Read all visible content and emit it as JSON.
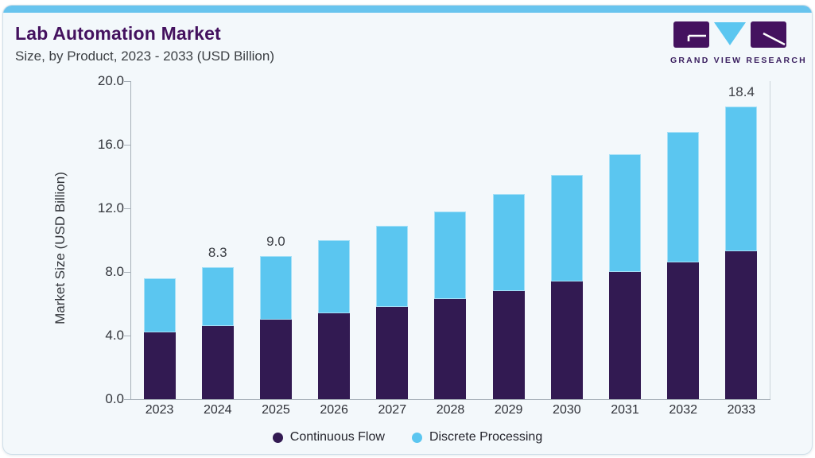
{
  "page": {
    "title": "Lab Automation Market",
    "subtitle": "Size, by Product, 2023 - 2033 (USD Billion)"
  },
  "logo": {
    "name": "grand-view-research",
    "text": "GRAND VIEW RESEARCH"
  },
  "colors": {
    "brand_purple": "#44125f",
    "bar_purple": "#321a52",
    "bar_blue": "#5bc6f0",
    "top_accent": "#68c4ee",
    "card_bg": "#f3f8fb",
    "card_border": "#cfdfe9",
    "axis_line": "#a7b0b8",
    "text_dark": "#33363c"
  },
  "chart_data": {
    "type": "bar",
    "stacked": true,
    "title": "Lab Automation Market Size, by Product, 2023 - 2033 (USD Billion)",
    "categories": [
      "2023",
      "2024",
      "2025",
      "2026",
      "2027",
      "2028",
      "2029",
      "2030",
      "2031",
      "2032",
      "2033"
    ],
    "series": [
      {
        "name": "Continuous Flow",
        "color": "#321a52",
        "values": [
          4.2,
          4.6,
          5.0,
          5.4,
          5.8,
          6.3,
          6.8,
          7.4,
          8.0,
          8.6,
          9.3
        ]
      },
      {
        "name": "Discrete Processing",
        "color": "#5bc6f0",
        "values": [
          3.4,
          3.7,
          4.0,
          4.6,
          5.1,
          5.5,
          6.1,
          6.7,
          7.4,
          8.2,
          9.1
        ]
      }
    ],
    "totals": [
      7.6,
      8.3,
      9.0,
      10.0,
      10.9,
      11.8,
      12.9,
      14.1,
      15.4,
      16.8,
      18.4
    ],
    "bar_labels": [
      "",
      "8.3",
      "9.0",
      "",
      "",
      "",
      "",
      "",
      "",
      "",
      "18.4"
    ],
    "xlabel": "",
    "ylabel": "Market Size (USD Billion)",
    "yticks": [
      0.0,
      4.0,
      8.0,
      12.0,
      16.0,
      20.0
    ],
    "ytick_labels": [
      "0.0",
      "4.0",
      "8.0",
      "12.0",
      "16.0",
      "20.0"
    ],
    "ylim": [
      0,
      20
    ],
    "grid": false,
    "legend_position": "bottom"
  }
}
